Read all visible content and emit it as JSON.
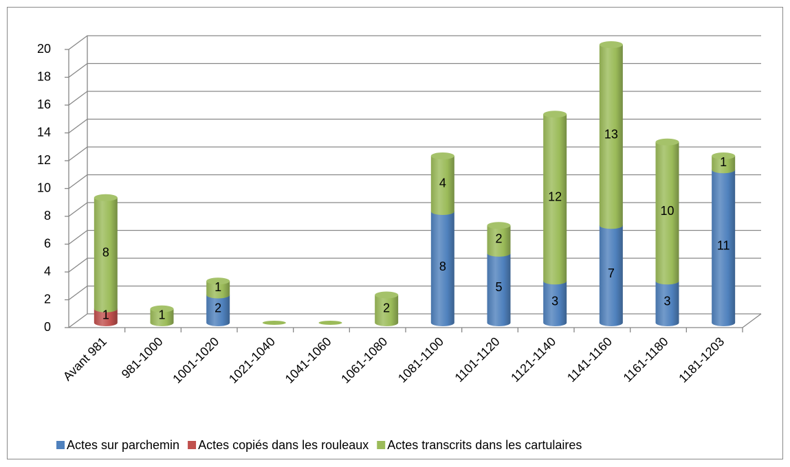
{
  "chart_data": {
    "type": "bar3d_stacked",
    "categories": [
      "Avant 981",
      "981-1000",
      "1001-1020",
      "1021-1040",
      "1041-1060",
      "1061-1080",
      "1081-1100",
      "1101-1120",
      "1121-1140",
      "1141-1160",
      "1161-1180",
      "1181-1203"
    ],
    "series": [
      {
        "name": "Actes sur parchemin",
        "color": "#4f81bd",
        "values": [
          0,
          0,
          2,
          0,
          0,
          0,
          8,
          5,
          3,
          7,
          3,
          11
        ]
      },
      {
        "name": "Actes copiés dans les rouleaux",
        "color": "#c0504d",
        "values": [
          1,
          0,
          0,
          0,
          0,
          0,
          0,
          0,
          0,
          0,
          0,
          0
        ]
      },
      {
        "name": "Actes transcrits dans les cartulaires",
        "color": "#9bbb59",
        "values": [
          8,
          1,
          1,
          0,
          0,
          2,
          4,
          2,
          12,
          13,
          10,
          1
        ]
      }
    ],
    "ylim": [
      0,
      20
    ],
    "yticks": [
      0,
      2,
      4,
      6,
      8,
      10,
      12,
      14,
      16,
      18,
      20
    ],
    "grid": true,
    "legend": "bottom"
  }
}
